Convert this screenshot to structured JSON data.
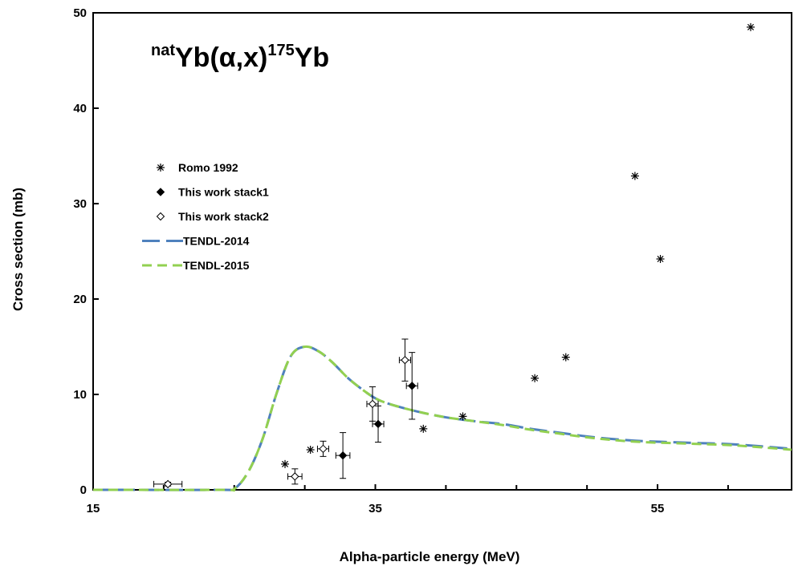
{
  "chart_data": {
    "type": "scatter",
    "title": {
      "pre_sup": "nat",
      "element": "Yb",
      "reaction": "(α,x)",
      "product_sup": "175",
      "product": "Yb"
    },
    "xlabel": "Alpha-particle  energy  (MeV)",
    "ylabel": "Cross section  (mb)",
    "xlim": [
      15,
      64.5
    ],
    "ylim": [
      0,
      50
    ],
    "x_ticks_labeled": [
      "15",
      "35",
      "55"
    ],
    "x_ticks_minor": [
      20,
      25,
      30,
      40,
      45,
      50,
      60
    ],
    "y_ticks": [
      "0",
      "10",
      "20",
      "30",
      "40",
      "50"
    ],
    "grid": false,
    "legend_position": "upper-left",
    "series": [
      {
        "name": "Romo 1992",
        "marker": "asterisk",
        "points": [
          {
            "x": 28.6,
            "y": 2.7
          },
          {
            "x": 30.4,
            "y": 4.2
          },
          {
            "x": 38.4,
            "y": 6.4
          },
          {
            "x": 41.2,
            "y": 7.7
          },
          {
            "x": 46.3,
            "y": 11.7
          },
          {
            "x": 48.5,
            "y": 13.9
          },
          {
            "x": 53.4,
            "y": 32.9
          },
          {
            "x": 55.2,
            "y": 24.2
          },
          {
            "x": 61.6,
            "y": 48.5
          }
        ]
      },
      {
        "name": "This work stack1",
        "marker": "filled-diamond",
        "points": [
          {
            "x": 32.7,
            "y": 3.6,
            "yerr": 2.4,
            "xerr": 0.5
          },
          {
            "x": 35.2,
            "y": 6.9,
            "yerr": 1.9,
            "xerr": 0.4
          },
          {
            "x": 37.6,
            "y": 10.9,
            "yerr": 3.5,
            "xerr": 0.4
          }
        ]
      },
      {
        "name": "This work stack2",
        "marker": "open-diamond",
        "points": [
          {
            "x": 20.3,
            "y": 0.6,
            "yerr": 0.2,
            "xerr": 1.0
          },
          {
            "x": 29.3,
            "y": 1.4,
            "yerr": 0.8,
            "xerr": 0.5
          },
          {
            "x": 31.3,
            "y": 4.3,
            "yerr": 0.8,
            "xerr": 0.4
          },
          {
            "x": 34.8,
            "y": 9.0,
            "yerr": 1.8,
            "xerr": 0.4
          },
          {
            "x": 37.1,
            "y": 13.6,
            "yerr": 2.2,
            "xerr": 0.4
          }
        ]
      },
      {
        "name": "TENDL-2014",
        "style": "long-dash",
        "color": "#4f81bd",
        "x": [
          15,
          24,
          25,
          26,
          27,
          28,
          29,
          30,
          31,
          32,
          33,
          34,
          35,
          36,
          38,
          40,
          42,
          44,
          46,
          48,
          50,
          52,
          54,
          56,
          58,
          60,
          62,
          64.5
        ],
        "y": [
          0.0,
          0.0,
          0.1,
          1.9,
          5.3,
          10.1,
          14.0,
          15.0,
          14.5,
          13.3,
          11.8,
          10.6,
          9.6,
          9.0,
          8.2,
          7.6,
          7.2,
          6.9,
          6.4,
          6.0,
          5.6,
          5.3,
          5.1,
          5.0,
          4.9,
          4.8,
          4.6,
          4.3
        ]
      },
      {
        "name": "TENDL-2015",
        "style": "short-dash",
        "color": "#92d050",
        "x": [
          15,
          24,
          25,
          26,
          27,
          28,
          29,
          30,
          31,
          32,
          33,
          34,
          35,
          36,
          38,
          40,
          42,
          44,
          46,
          48,
          50,
          52,
          54,
          56,
          58,
          60,
          62,
          64.5
        ],
        "y": [
          0.0,
          0.0,
          0.1,
          1.9,
          5.3,
          10.1,
          14.0,
          15.0,
          14.5,
          13.3,
          11.8,
          10.6,
          9.6,
          9.0,
          8.2,
          7.6,
          7.2,
          6.8,
          6.3,
          5.9,
          5.5,
          5.2,
          5.0,
          4.9,
          4.8,
          4.7,
          4.5,
          4.2
        ]
      }
    ]
  }
}
